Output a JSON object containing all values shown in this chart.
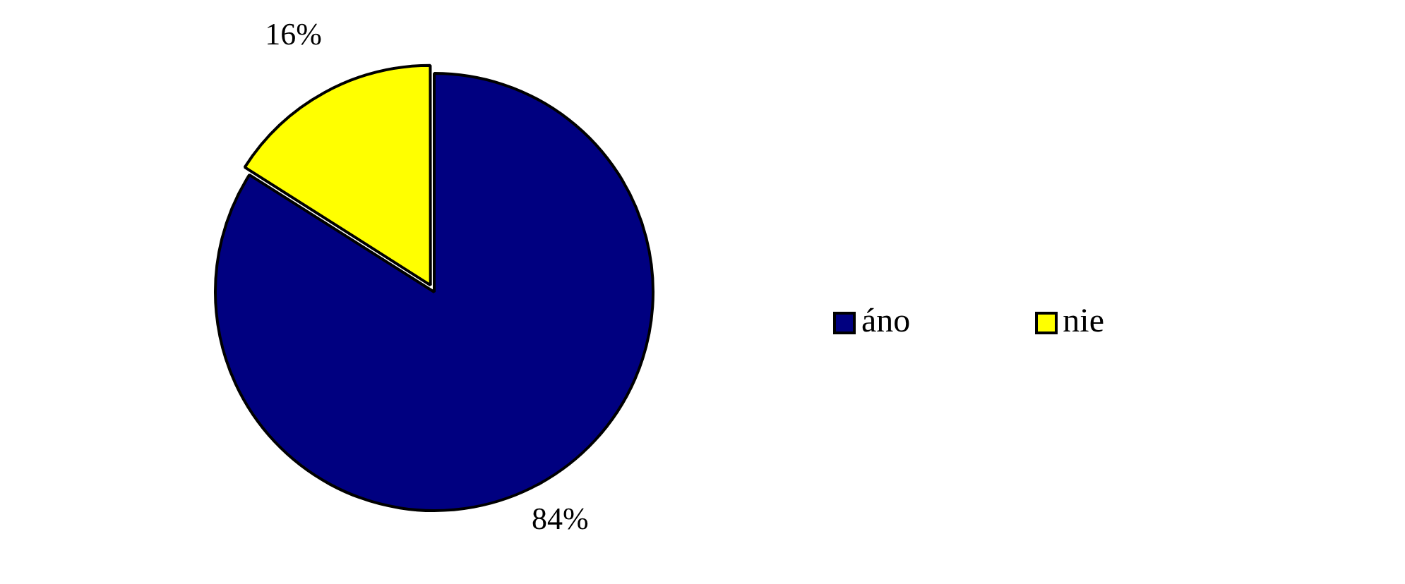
{
  "chart_data": {
    "type": "pie",
    "categories": [
      "áno",
      "nie"
    ],
    "values": [
      84,
      16
    ],
    "colors": [
      "#000080",
      "#ffff00"
    ],
    "value_labels": [
      "84%",
      "16%"
    ],
    "legend": "right"
  }
}
